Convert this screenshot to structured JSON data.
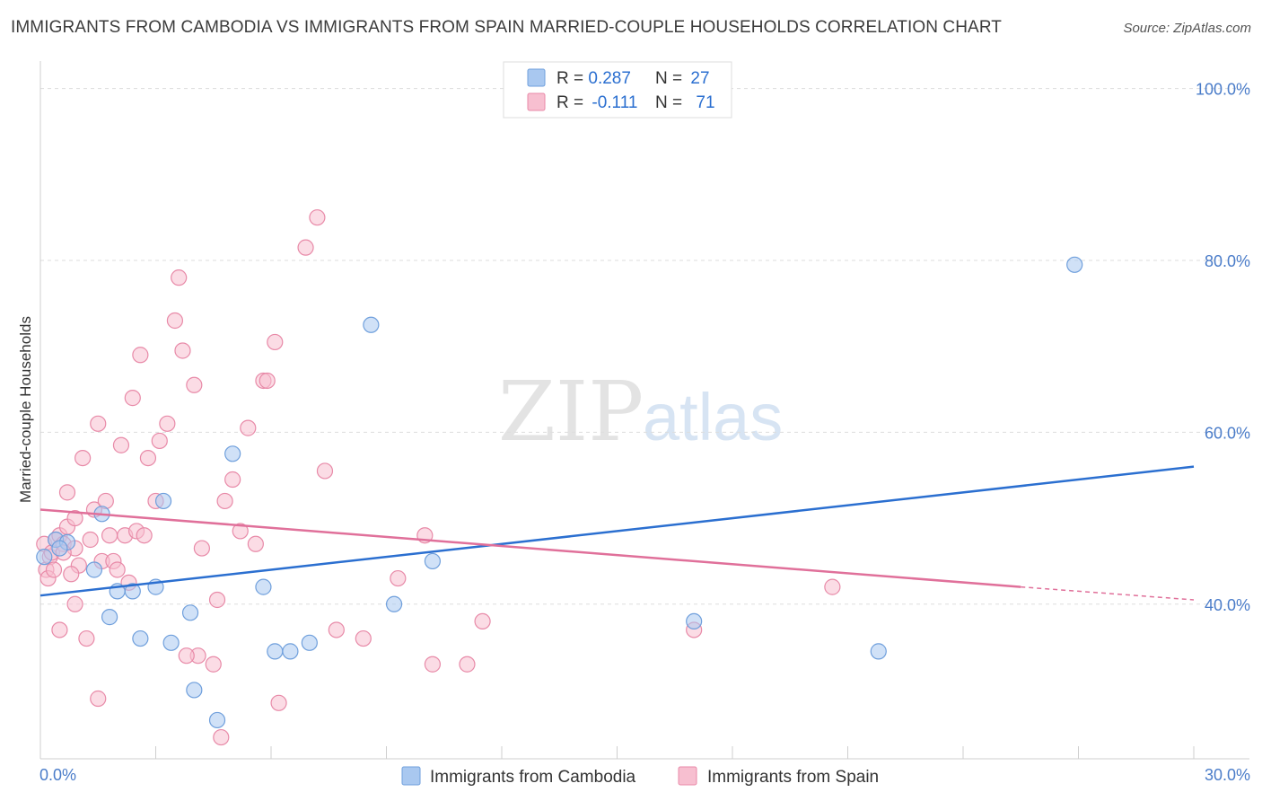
{
  "title": "IMMIGRANTS FROM CAMBODIA VS IMMIGRANTS FROM SPAIN MARRIED-COUPLE HOUSEHOLDS CORRELATION CHART",
  "source": "Source: ZipAtlas.com",
  "watermark": {
    "zip": "ZIP",
    "atlas": "atlas"
  },
  "colors": {
    "cambodia_fill": "#a9c8f0",
    "cambodia_stroke": "#6f9fdc",
    "cambodia_line": "#2b6fd0",
    "spain_fill": "#f7bfd0",
    "spain_stroke": "#e88aa8",
    "spain_line": "#e0709a",
    "axis_label": "#4a7cc9",
    "grid": "#dddddd"
  },
  "legend": {
    "rows": [
      {
        "r_label": "R = ",
        "r_value": "0.287",
        "n_label": "N = ",
        "n_value": "27"
      },
      {
        "r_label": "R = ",
        "r_value": "-0.111",
        "n_label": "N = ",
        "n_value": "71"
      }
    ]
  },
  "chart_data": {
    "type": "scatter",
    "title": "IMMIGRANTS FROM CAMBODIA VS IMMIGRANTS FROM SPAIN MARRIED-COUPLE HOUSEHOLDS CORRELATION CHART",
    "xlabel": "",
    "ylabel": "Married-couple Households",
    "xlim": [
      0,
      30
    ],
    "ylim": [
      22,
      102
    ],
    "x_tick_labels": [
      "0.0%",
      "30.0%"
    ],
    "y_ticks": [
      40,
      60,
      80,
      100
    ],
    "y_tick_labels": [
      "40.0%",
      "60.0%",
      "80.0%",
      "100.0%"
    ],
    "series": [
      {
        "name": "Immigrants from Cambodia",
        "r": 0.287,
        "n": 27,
        "trend": {
          "x0": 0,
          "y0": 41.0,
          "x1": 30,
          "y1": 56.0
        },
        "points": [
          [
            0.1,
            45.5
          ],
          [
            0.4,
            47.5
          ],
          [
            0.7,
            47.2
          ],
          [
            0.5,
            46.5
          ],
          [
            1.4,
            44.0
          ],
          [
            1.6,
            50.5
          ],
          [
            1.8,
            38.5
          ],
          [
            2.0,
            41.5
          ],
          [
            2.4,
            41.5
          ],
          [
            2.6,
            36.0
          ],
          [
            3.0,
            42.0
          ],
          [
            3.2,
            52.0
          ],
          [
            3.4,
            35.5
          ],
          [
            3.9,
            39.0
          ],
          [
            4.0,
            30.0
          ],
          [
            4.6,
            26.5
          ],
          [
            5.0,
            57.5
          ],
          [
            5.8,
            42.0
          ],
          [
            6.1,
            34.5
          ],
          [
            6.5,
            34.5
          ],
          [
            7.0,
            35.5
          ],
          [
            8.6,
            72.5
          ],
          [
            9.2,
            40.0
          ],
          [
            10.2,
            45.0
          ],
          [
            17.0,
            38.0
          ],
          [
            21.8,
            34.5
          ],
          [
            26.9,
            79.5
          ]
        ]
      },
      {
        "name": "Immigrants from Spain",
        "r": -0.111,
        "n": 71,
        "trend": {
          "x0": 0,
          "y0": 51.0,
          "x1": 25.5,
          "y1": 42.0
        },
        "trend_dashed": {
          "x0": 25.5,
          "y0": 42.0,
          "x1": 30,
          "y1": 40.5
        },
        "points": [
          [
            0.1,
            47.0
          ],
          [
            0.15,
            44.0
          ],
          [
            0.2,
            43.0
          ],
          [
            0.25,
            45.5
          ],
          [
            0.3,
            46.0
          ],
          [
            0.35,
            44.0
          ],
          [
            0.4,
            47.5
          ],
          [
            0.5,
            48.0
          ],
          [
            0.6,
            47.0
          ],
          [
            0.7,
            49.0
          ],
          [
            0.9,
            46.5
          ],
          [
            1.0,
            44.5
          ],
          [
            0.8,
            43.5
          ],
          [
            0.7,
            53.0
          ],
          [
            0.9,
            50.0
          ],
          [
            1.1,
            57.0
          ],
          [
            1.3,
            47.5
          ],
          [
            1.4,
            51.0
          ],
          [
            1.5,
            61.0
          ],
          [
            1.6,
            45.0
          ],
          [
            1.7,
            52.0
          ],
          [
            1.8,
            48.0
          ],
          [
            1.9,
            45.0
          ],
          [
            2.0,
            44.0
          ],
          [
            2.1,
            58.5
          ],
          [
            2.2,
            48.0
          ],
          [
            2.4,
            64.0
          ],
          [
            2.5,
            48.5
          ],
          [
            2.6,
            69.0
          ],
          [
            2.7,
            48.0
          ],
          [
            2.8,
            57.0
          ],
          [
            3.0,
            52.0
          ],
          [
            3.1,
            59.0
          ],
          [
            3.3,
            61.0
          ],
          [
            3.5,
            73.0
          ],
          [
            3.6,
            78.0
          ],
          [
            3.7,
            69.5
          ],
          [
            4.0,
            65.5
          ],
          [
            4.1,
            34.0
          ],
          [
            4.2,
            46.5
          ],
          [
            4.5,
            33.0
          ],
          [
            4.6,
            40.5
          ],
          [
            4.8,
            52.0
          ],
          [
            5.0,
            54.5
          ],
          [
            5.2,
            48.5
          ],
          [
            5.4,
            60.5
          ],
          [
            5.6,
            47.0
          ],
          [
            5.8,
            66.0
          ],
          [
            5.9,
            66.0
          ],
          [
            6.1,
            70.5
          ],
          [
            6.2,
            28.5
          ],
          [
            6.9,
            81.5
          ],
          [
            7.2,
            85.0
          ],
          [
            7.4,
            55.5
          ],
          [
            7.7,
            37.0
          ],
          [
            8.4,
            36.0
          ],
          [
            9.3,
            43.0
          ],
          [
            10.0,
            48.0
          ],
          [
            10.2,
            33.0
          ],
          [
            11.1,
            33.0
          ],
          [
            11.5,
            38.0
          ],
          [
            17.0,
            37.0
          ],
          [
            20.6,
            42.0
          ],
          [
            0.5,
            37.0
          ],
          [
            0.9,
            40.0
          ],
          [
            1.2,
            36.0
          ],
          [
            1.5,
            29.0
          ],
          [
            2.3,
            42.5
          ],
          [
            3.8,
            34.0
          ],
          [
            4.7,
            24.5
          ],
          [
            0.6,
            46.0
          ]
        ]
      }
    ],
    "legend_position": "bottom"
  }
}
